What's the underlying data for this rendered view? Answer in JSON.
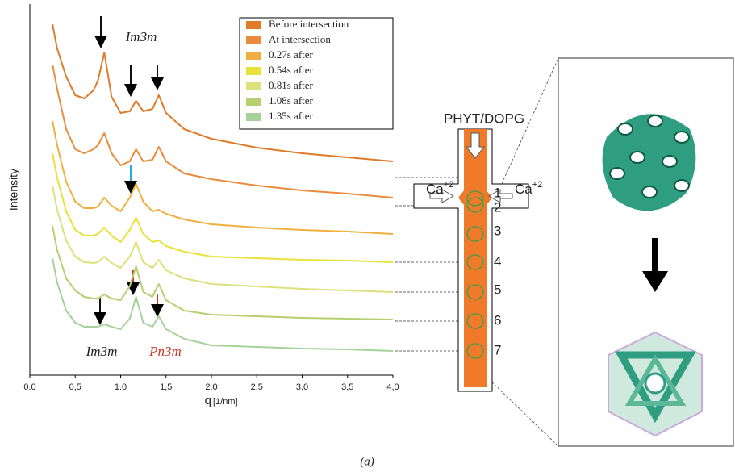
{
  "chart_data": {
    "type": "line",
    "ylabel": "Intensity",
    "xlabel": "q",
    "xlabel_unit": "[1/nm]",
    "xlim": [
      0,
      4
    ],
    "ylim": [
      0,
      460
    ],
    "xticks": [
      {
        "value": 0,
        "label": "0.0"
      },
      {
        "value": 0.5,
        "label": "0,5"
      },
      {
        "value": 1,
        "label": "1.0"
      },
      {
        "value": 1.5,
        "label": "1,5"
      },
      {
        "value": 2,
        "label": "2.0"
      },
      {
        "value": 2.5,
        "label": "2.5"
      },
      {
        "value": 3,
        "label": "3.0"
      },
      {
        "value": 3.5,
        "label": "3,5"
      },
      {
        "value": 4,
        "label": "4,0"
      }
    ],
    "x": [
      0.25,
      0.3,
      0.4,
      0.5,
      0.6,
      0.7,
      0.75,
      0.82,
      0.9,
      1.0,
      1.1,
      1.17,
      1.25,
      1.35,
      1.42,
      1.5,
      1.7,
      2.0,
      2.5,
      3.0,
      3.5,
      4.0
    ],
    "series": [
      {
        "name": "Before intersection",
        "color": "#e07b2a",
        "values": [
          435,
          405,
          370,
          347,
          343,
          353,
          365,
          400,
          345,
          325,
          327,
          340,
          327,
          330,
          347,
          325,
          305,
          293,
          282,
          275,
          270,
          265
        ]
      },
      {
        "name": "At intersection",
        "color": "#e98c3c",
        "values": [
          385,
          355,
          305,
          280,
          275,
          280,
          285,
          300,
          275,
          260,
          265,
          280,
          265,
          267,
          283,
          265,
          250,
          243,
          235,
          229,
          225,
          220
        ]
      },
      {
        "name": "0.27s after",
        "color": "#f0b040",
        "values": [
          315,
          285,
          240,
          215,
          207,
          207,
          209,
          220,
          210,
          203,
          220,
          237,
          215,
          203,
          205,
          200,
          193,
          187,
          183,
          180,
          178,
          175
        ]
      },
      {
        "name": "0.54s after",
        "color": "#e9e23a",
        "values": [
          275,
          245,
          203,
          180,
          173,
          173,
          175,
          183,
          173,
          165,
          180,
          195,
          175,
          165,
          167,
          160,
          153,
          147,
          145,
          143,
          142,
          140
        ]
      },
      {
        "name": "0.81s after",
        "color": "#dbe27c",
        "values": [
          235,
          205,
          167,
          147,
          140,
          139,
          140,
          147,
          139,
          133,
          147,
          165,
          140,
          133,
          143,
          130,
          120,
          113,
          110,
          107,
          105,
          103
        ]
      },
      {
        "name": "1.08s after",
        "color": "#b6d070",
        "values": [
          185,
          155,
          120,
          105,
          97,
          95,
          95,
          100,
          95,
          93,
          110,
          135,
          103,
          97,
          113,
          93,
          80,
          75,
          73,
          71,
          70,
          69
        ]
      },
      {
        "name": "1.35s after",
        "color": "#a6d29a",
        "values": [
          145,
          115,
          80,
          65,
          60,
          60,
          60,
          63,
          60,
          57,
          70,
          97,
          65,
          60,
          73,
          57,
          45,
          37,
          35,
          33,
          32,
          30
        ]
      }
    ],
    "annotations": [
      "Im3m",
      "Im3m",
      "Pn3m"
    ]
  },
  "diagram": {
    "title": "PHYT/DOPG",
    "ions": [
      {
        "symbol": "Ca",
        "charge": "+2"
      },
      {
        "symbol": "Ca",
        "charge": "+2"
      }
    ],
    "positions": [
      "1",
      "2",
      "3",
      "4",
      "5",
      "6",
      "7"
    ]
  },
  "caption": "(a)"
}
